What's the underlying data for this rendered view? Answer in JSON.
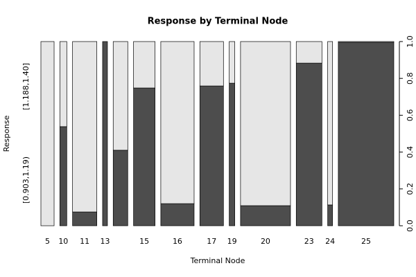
{
  "chart_data": {
    "type": "spine",
    "title": "Response by Terminal Node",
    "x_label": "Terminal Node",
    "y_label": "Response",
    "categories": [
      "5",
      "10",
      "11",
      "13",
      null,
      "15",
      "16",
      "17",
      "19",
      "20",
      "23",
      "24",
      "25"
    ],
    "widths": [
      19,
      10,
      35,
      7,
      21,
      31,
      48,
      34,
      8,
      72,
      37,
      7,
      80
    ],
    "series": [
      {
        "name": "[0.903,1.19)",
        "color": "#4d4d4d",
        "values": [
          0,
          0.538,
          0.075,
          1,
          0.41,
          0.748,
          0.12,
          0.759,
          0.774,
          0.109,
          0.883,
          0.113,
          0.996
        ]
      },
      {
        "name": "[1.188,1.40]",
        "color": "#e6e6e6",
        "values": [
          1,
          0.462,
          0.925,
          0,
          0.59,
          0.252,
          0.88,
          0.241,
          0.226,
          0.891,
          0.117,
          0.887,
          0.004
        ]
      }
    ],
    "ylim": [
      0,
      1
    ],
    "yticks": [
      {
        "value": 0,
        "label": "0.0"
      },
      {
        "value": 0.2,
        "label": "0.2"
      },
      {
        "value": 0.4,
        "label": "0.4"
      },
      {
        "value": 0.6,
        "label": "0.6"
      },
      {
        "value": 0.8,
        "label": "0.8"
      },
      {
        "value": 1,
        "label": "1.0"
      }
    ]
  }
}
